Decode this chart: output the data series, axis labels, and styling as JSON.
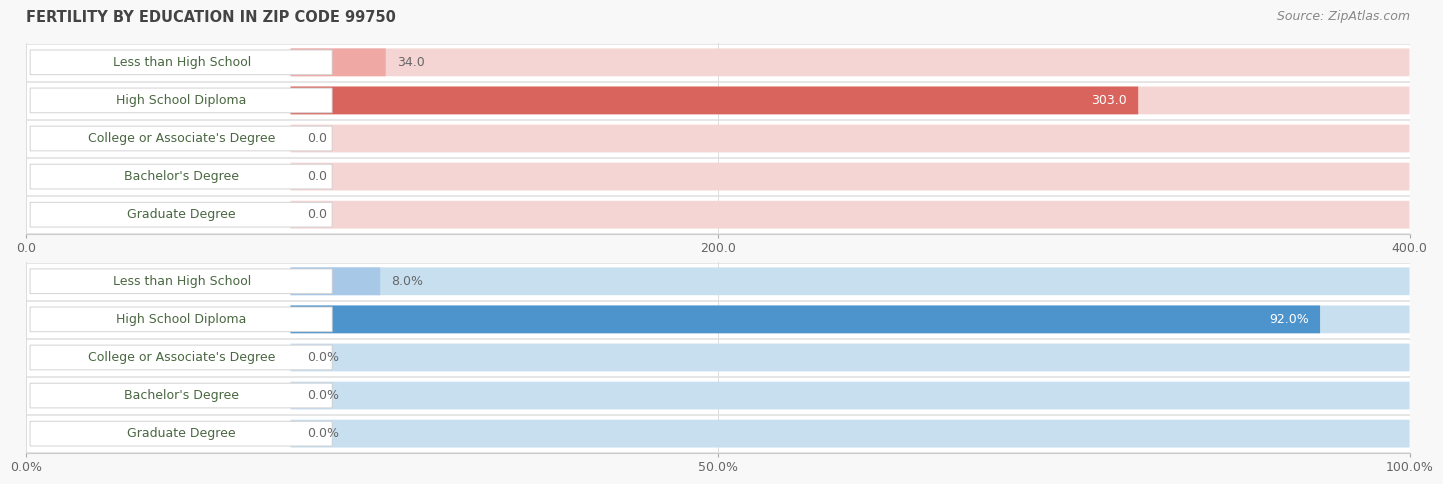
{
  "title": "FERTILITY BY EDUCATION IN ZIP CODE 99750",
  "source_text": "Source: ZipAtlas.com",
  "top_chart": {
    "categories": [
      "Less than High School",
      "High School Diploma",
      "College or Associate's Degree",
      "Bachelor's Degree",
      "Graduate Degree"
    ],
    "values": [
      34.0,
      303.0,
      0.0,
      0.0,
      0.0
    ],
    "xlim": [
      0,
      400
    ],
    "xticks": [
      0.0,
      200.0,
      400.0
    ],
    "xticklabels": [
      "0.0",
      "200.0",
      "400.0"
    ],
    "bar_color_normal": "#f0a8a5",
    "bar_color_highlight": "#d9645e",
    "bar_bg_color": "#f5d5d3",
    "highlight_index": 1
  },
  "bottom_chart": {
    "categories": [
      "Less than High School",
      "High School Diploma",
      "College or Associate's Degree",
      "Bachelor's Degree",
      "Graduate Degree"
    ],
    "values": [
      8.0,
      92.0,
      0.0,
      0.0,
      0.0
    ],
    "xlim": [
      0,
      100
    ],
    "xticks": [
      0.0,
      50.0,
      100.0
    ],
    "xticklabels": [
      "0.0%",
      "50.0%",
      "100.0%"
    ],
    "bar_color_normal": "#a8c8e8",
    "bar_color_highlight": "#4d94cc",
    "bar_bg_color": "#c8dff0",
    "highlight_index": 1
  },
  "label_fontsize": 9,
  "value_fontsize": 9,
  "tick_fontsize": 9,
  "title_fontsize": 10.5,
  "source_fontsize": 9,
  "background_color": "#f8f8f8",
  "row_bg_color": "#ffffff",
  "row_border_color": "#e0e0e0",
  "label_text_color": "#4a6741",
  "value_text_color_inside": "#ffffff",
  "value_text_color_outside": "#666666"
}
